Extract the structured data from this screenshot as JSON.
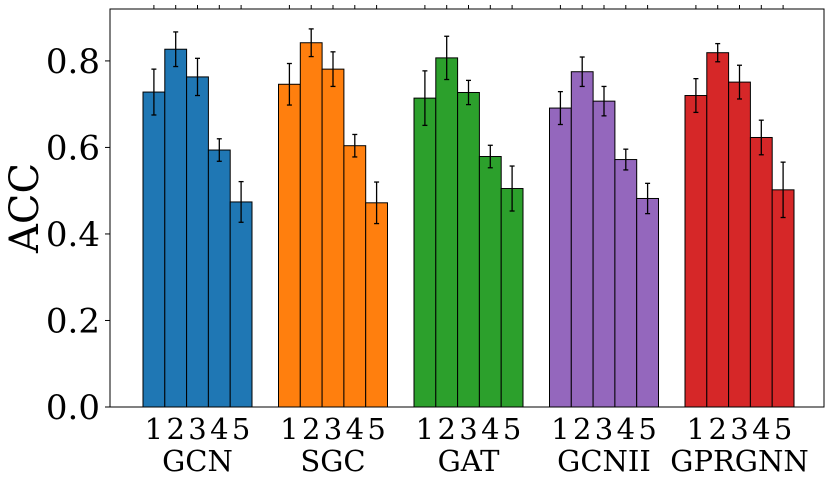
{
  "chart_data": {
    "type": "bar",
    "title": "",
    "xlabel": "",
    "ylabel": "ACC",
    "ylim": [
      0,
      0.92
    ],
    "yticks": [
      0.0,
      0.2,
      0.4,
      0.6,
      0.8
    ],
    "ytick_labels": [
      "0.0",
      "0.2",
      "0.4",
      "0.6",
      "0.8"
    ],
    "bar_labels": [
      "1",
      "2",
      "3",
      "4",
      "5"
    ],
    "groups": [
      {
        "name": "GCN",
        "color": "#1f77b4",
        "values": [
          0.728,
          0.827,
          0.763,
          0.594,
          0.474
        ],
        "errors": [
          0.053,
          0.04,
          0.043,
          0.026,
          0.047
        ]
      },
      {
        "name": "SGC",
        "color": "#ff7f0e",
        "values": [
          0.746,
          0.842,
          0.781,
          0.604,
          0.472
        ],
        "errors": [
          0.048,
          0.032,
          0.04,
          0.026,
          0.048
        ]
      },
      {
        "name": "GAT",
        "color": "#2ca02c",
        "values": [
          0.714,
          0.807,
          0.727,
          0.579,
          0.505
        ],
        "errors": [
          0.063,
          0.05,
          0.028,
          0.026,
          0.052
        ]
      },
      {
        "name": "GCNII",
        "color": "#9467bd",
        "values": [
          0.691,
          0.775,
          0.707,
          0.572,
          0.482
        ],
        "errors": [
          0.038,
          0.034,
          0.034,
          0.024,
          0.035
        ]
      },
      {
        "name": "GPRGNN",
        "color": "#d62728",
        "values": [
          0.72,
          0.819,
          0.751,
          0.623,
          0.502
        ],
        "errors": [
          0.039,
          0.021,
          0.039,
          0.04,
          0.064
        ]
      }
    ]
  }
}
